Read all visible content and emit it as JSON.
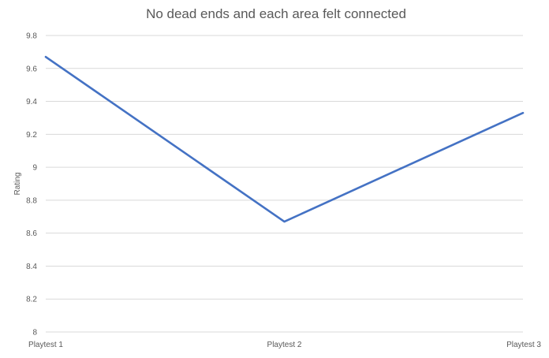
{
  "chart_data": {
    "type": "line",
    "title": "No dead ends and each area felt connected",
    "xlabel": "",
    "ylabel": "Rating",
    "categories": [
      "Playtest 1",
      "Playtest 2",
      "Playtest 3"
    ],
    "series": [
      {
        "values": [
          9.67,
          8.67,
          9.33
        ],
        "color": "#4472c4"
      }
    ],
    "ylim": [
      8,
      9.8
    ],
    "y_ticks": [
      8,
      8.2,
      8.4,
      8.6,
      8.8,
      9,
      9.2,
      9.4,
      9.6,
      9.8
    ],
    "y_tick_labels": [
      "8",
      "8.2",
      "8.4",
      "8.6",
      "8.8",
      "9",
      "9.2",
      "9.4",
      "9.6",
      "9.8"
    ],
    "grid": true,
    "legend": "none"
  }
}
